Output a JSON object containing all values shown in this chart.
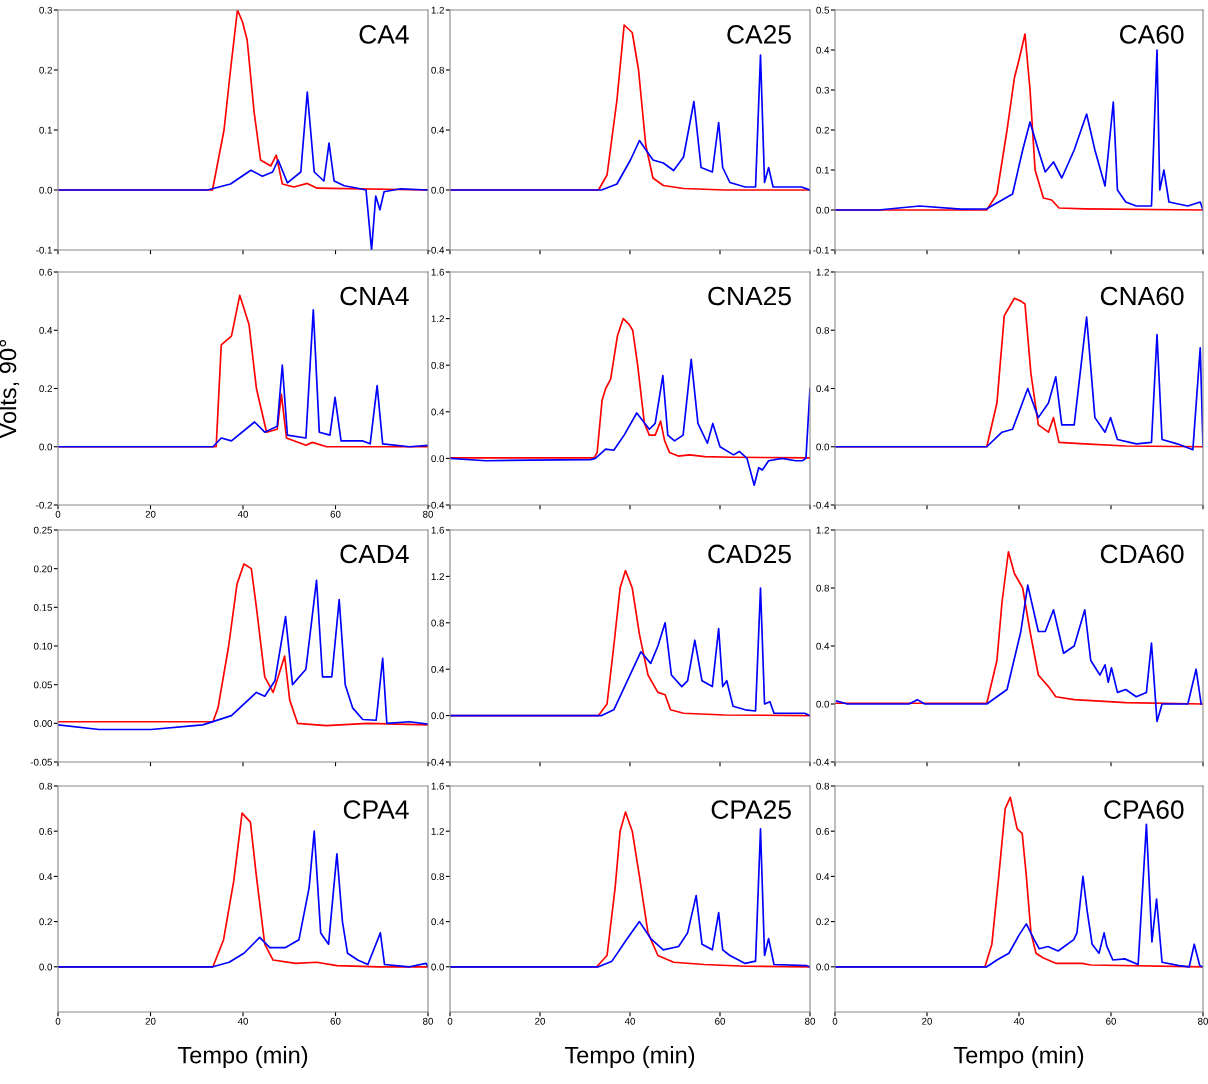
{
  "chart_data": [
    {
      "type": "line",
      "title": "CA4",
      "xlim": [
        0,
        80
      ],
      "ylim": [
        -0.1,
        0.3
      ],
      "xticks": [
        0,
        20,
        40,
        60,
        80
      ],
      "yticks": [
        {
          "value": -0.1,
          "label": "-0.1"
        },
        {
          "value": 0,
          "label": "0.0"
        },
        {
          "value": 0.1,
          "label": "0.1"
        },
        {
          "value": 0.2,
          "label": "0.2"
        },
        {
          "value": 0.3,
          "label": "0.3"
        }
      ],
      "tick_labels": "y",
      "series": [
        {
          "color": "#ff0000",
          "x": [
            0,
            33.4,
            35.9,
            37.3,
            38.8,
            39.9,
            40.9,
            42.4,
            43.8,
            46,
            47.2,
            48.5,
            51,
            53.9,
            56,
            80
          ],
          "values": [
            0,
            0,
            0.1,
            0.2,
            0.3,
            0.28,
            0.25,
            0.13,
            0.05,
            0.04,
            0.058,
            0.01,
            0.005,
            0.011,
            0.003,
            0
          ]
        },
        {
          "color": "#0000ff",
          "x": [
            0,
            32.3,
            37.3,
            41.7,
            44.2,
            46.4,
            47.6,
            49.6,
            52.5,
            53.9,
            55.4,
            57.5,
            58.6,
            59.7,
            61.9,
            64.8,
            66.6,
            67.8,
            68.7,
            69.6,
            70.5,
            74.1,
            80
          ],
          "values": [
            0,
            0,
            0.01,
            0.033,
            0.023,
            0.03,
            0.05,
            0.012,
            0.03,
            0.163,
            0.03,
            0.015,
            0.078,
            0.015,
            0.007,
            0.003,
            0,
            -0.1,
            -0.01,
            -0.033,
            -0.003,
            0.002,
            0
          ]
        }
      ]
    },
    {
      "type": "line",
      "title": "CA25",
      "xlim": [
        0,
        80
      ],
      "ylim": [
        -0.4,
        1.2
      ],
      "xticks": [
        0,
        20,
        40,
        60,
        80
      ],
      "yticks": [
        {
          "value": -0.4,
          "label": "-0.4"
        },
        {
          "value": 0,
          "label": "0.0"
        },
        {
          "value": 0.4,
          "label": "0.4"
        },
        {
          "value": 0.8,
          "label": "0.8"
        },
        {
          "value": 1.2,
          "label": "1.2"
        }
      ],
      "tick_labels": "y",
      "series": [
        {
          "color": "#ff0000",
          "x": [
            0,
            33,
            34.9,
            37.1,
            38.7,
            40.5,
            41.9,
            43.5,
            45.1,
            47.4,
            51.9,
            61,
            80
          ],
          "values": [
            0,
            0,
            0.1,
            0.6,
            1.1,
            1.05,
            0.8,
            0.3,
            0.08,
            0.03,
            0.01,
            0,
            0
          ]
        },
        {
          "color": "#0000ff",
          "x": [
            0,
            33.7,
            37.1,
            40.1,
            42.1,
            45.1,
            47.4,
            49.7,
            51.9,
            54.2,
            55.8,
            58.3,
            59.7,
            60.6,
            62.2,
            65.6,
            67.9,
            69,
            69.9,
            70.8,
            71.8,
            78.1,
            80
          ],
          "values": [
            0,
            0,
            0.04,
            0.2,
            0.33,
            0.2,
            0.18,
            0.13,
            0.22,
            0.59,
            0.15,
            0.12,
            0.45,
            0.15,
            0.05,
            0.02,
            0.02,
            0.9,
            0.05,
            0.15,
            0.02,
            0.02,
            0
          ]
        }
      ]
    },
    {
      "type": "line",
      "title": "CA60",
      "xlim": [
        0,
        80
      ],
      "ylim": [
        -0.1,
        0.5
      ],
      "xticks": [
        0,
        20,
        40,
        60,
        80
      ],
      "yticks": [
        {
          "value": -0.1,
          "label": "-0.1"
        },
        {
          "value": 0,
          "label": "0.0"
        },
        {
          "value": 0.1,
          "label": "0.1"
        },
        {
          "value": 0.2,
          "label": "0.2"
        },
        {
          "value": 0.3,
          "label": "0.3"
        },
        {
          "value": 0.4,
          "label": "0.4"
        },
        {
          "value": 0.5,
          "label": "0.5"
        }
      ],
      "tick_labels": "y",
      "series": [
        {
          "color": "#ff0000",
          "x": [
            0,
            33,
            35.2,
            37.4,
            39,
            40.1,
            41.3,
            42.4,
            43.5,
            45.3,
            47.1,
            48.7,
            54.3,
            80
          ],
          "values": [
            0,
            0,
            0.04,
            0.2,
            0.33,
            0.38,
            0.44,
            0.3,
            0.1,
            0.03,
            0.025,
            0.005,
            0.003,
            0
          ]
        },
        {
          "color": "#0000ff",
          "x": [
            0,
            9.4,
            13.9,
            18.4,
            27.4,
            33,
            38.6,
            40.8,
            42.4,
            44.2,
            45.7,
            47.5,
            49.3,
            52,
            54.7,
            56.5,
            58.7,
            60.5,
            61.4,
            63.2,
            65.5,
            68.8,
            70,
            70.6,
            71.5,
            72.6,
            76.7,
            79.4,
            80
          ],
          "values": [
            0,
            0,
            0.005,
            0.01,
            0.002,
            0.003,
            0.04,
            0.15,
            0.22,
            0.15,
            0.095,
            0.12,
            0.08,
            0.15,
            0.24,
            0.15,
            0.06,
            0.27,
            0.05,
            0.02,
            0.01,
            0.01,
            0.4,
            0.05,
            0.1,
            0.02,
            0.01,
            0.02,
            0
          ]
        }
      ]
    },
    {
      "type": "line",
      "title": "CNA4",
      "ylabel": "Volts, 90°",
      "xlim": [
        0,
        80
      ],
      "ylim": [
        -0.2,
        0.6
      ],
      "xticks": [
        0,
        20,
        40,
        60,
        80
      ],
      "yticks": [
        {
          "value": -0.2,
          "label": "-0.2"
        },
        {
          "value": 0,
          "label": "0.0"
        },
        {
          "value": 0.2,
          "label": "0.2"
        },
        {
          "value": 0.4,
          "label": "0.4"
        },
        {
          "value": 0.6,
          "label": "0.6"
        }
      ],
      "series": [
        {
          "color": "#ff0000",
          "x": [
            0,
            34.2,
            35.3,
            37.5,
            39.3,
            41.3,
            42.9,
            45.1,
            47.4,
            48.3,
            49.4,
            53.6,
            55,
            58.1,
            80
          ],
          "values": [
            0,
            0,
            0.35,
            0.38,
            0.52,
            0.42,
            0.2,
            0.05,
            0.06,
            0.18,
            0.03,
            0.005,
            0.015,
            0,
            0
          ]
        },
        {
          "color": "#0000ff",
          "x": [
            0,
            33.5,
            35.3,
            37.5,
            42.5,
            44.7,
            47.4,
            48.5,
            49.6,
            53.6,
            55.2,
            56.5,
            58.8,
            59.9,
            61.2,
            65.9,
            67.5,
            69,
            70.2,
            76,
            80
          ],
          "values": [
            0,
            0,
            0.03,
            0.02,
            0.085,
            0.05,
            0.07,
            0.28,
            0.04,
            0.03,
            0.47,
            0.05,
            0.04,
            0.17,
            0.02,
            0.02,
            0.01,
            0.21,
            0.01,
            0,
            0.005
          ]
        }
      ]
    },
    {
      "type": "line",
      "title": "CNA25",
      "xlim": [
        0,
        80
      ],
      "ylim": [
        -0.4,
        1.6
      ],
      "xticks": [
        0,
        20,
        40,
        60,
        80
      ],
      "yticks": [
        {
          "value": -0.4,
          "label": "-0.4"
        },
        {
          "value": 0,
          "label": "0.0"
        },
        {
          "value": 0.4,
          "label": "0.4"
        },
        {
          "value": 0.8,
          "label": "0.8"
        },
        {
          "value": 1.2,
          "label": "1.2"
        },
        {
          "value": 1.6,
          "label": "1.6"
        }
      ],
      "tick_labels": "y",
      "series": [
        {
          "color": "#ff0000",
          "x": [
            0,
            32,
            32.7,
            33.8,
            34.6,
            35.7,
            37.2,
            38.5,
            39.8,
            40.6,
            41.7,
            43.2,
            44.3,
            45.6,
            46.8,
            47.7,
            48.8,
            50.7,
            53.3,
            56.6,
            62.6,
            80
          ],
          "values": [
            0.005,
            0.005,
            0.05,
            0.5,
            0.6,
            0.68,
            1.05,
            1.2,
            1.15,
            1.1,
            0.8,
            0.3,
            0.2,
            0.2,
            0.32,
            0.15,
            0.05,
            0.02,
            0.03,
            0.015,
            0.01,
            0.005
          ]
        },
        {
          "color": "#0000ff",
          "x": [
            0,
            8,
            17.8,
            31.2,
            32.3,
            34.6,
            36.4,
            38.7,
            41.5,
            44.3,
            45.6,
            47.3,
            48.4,
            49.9,
            51.8,
            53.6,
            55.1,
            57.2,
            58.4,
            60,
            63,
            64.3,
            66,
            67.6,
            68.6,
            69.4,
            70.8,
            73.8,
            76.8,
            78.3,
            79.1,
            80
          ],
          "values": [
            0,
            -0.02,
            -0.015,
            -0.01,
            0,
            0.08,
            0.07,
            0.2,
            0.39,
            0.25,
            0.3,
            0.71,
            0.2,
            0.15,
            0.2,
            0.85,
            0.3,
            0.13,
            0.3,
            0.1,
            0.03,
            0.06,
            0,
            -0.23,
            -0.08,
            -0.1,
            -0.02,
            0,
            -0.02,
            -0.02,
            0,
            0.6
          ]
        }
      ]
    },
    {
      "type": "line",
      "title": "CNA60",
      "xlim": [
        0,
        80
      ],
      "ylim": [
        -0.4,
        1.2
      ],
      "xticks": [
        0,
        20,
        40,
        60,
        80
      ],
      "yticks": [
        {
          "value": -0.4,
          "label": "-0.4"
        },
        {
          "value": 0,
          "label": "0.0"
        },
        {
          "value": 0.4,
          "label": "0.4"
        },
        {
          "value": 0.8,
          "label": "0.8"
        },
        {
          "value": 1.2,
          "label": "1.2"
        }
      ],
      "tick_labels": "y",
      "series": [
        {
          "color": "#ff0000",
          "x": [
            0,
            33,
            35.2,
            36.8,
            39,
            40.4,
            41.3,
            42.6,
            44.2,
            46.4,
            47.5,
            48.7,
            54.3,
            63.2,
            80
          ],
          "values": [
            0,
            0,
            0.3,
            0.9,
            1.02,
            1.0,
            0.98,
            0.5,
            0.15,
            0.1,
            0.2,
            0.03,
            0.02,
            0.005,
            0
          ]
        },
        {
          "color": "#0000ff",
          "x": [
            0,
            33,
            36.3,
            38.6,
            41.9,
            44.2,
            46.4,
            48,
            49.3,
            52,
            54.7,
            56.5,
            58.7,
            59.9,
            61.4,
            65.5,
            68.8,
            70,
            71.1,
            74.4,
            77.8,
            79.4,
            80
          ],
          "values": [
            0,
            0,
            0.1,
            0.12,
            0.4,
            0.2,
            0.3,
            0.48,
            0.15,
            0.15,
            0.89,
            0.2,
            0.1,
            0.2,
            0.05,
            0.02,
            0.03,
            0.77,
            0.05,
            0.02,
            -0.02,
            0.68,
            0
          ]
        }
      ]
    },
    {
      "type": "line",
      "title": "CAD4",
      "xlim": [
        0,
        80
      ],
      "ylim": [
        -0.05,
        0.25
      ],
      "xticks": [
        0,
        20,
        40,
        60,
        80
      ],
      "yticks": [
        {
          "value": -0.05,
          "label": "-0.05"
        },
        {
          "value": 0,
          "label": "0.00"
        },
        {
          "value": 0.05,
          "label": "0.05"
        },
        {
          "value": 0.1,
          "label": "0.10"
        },
        {
          "value": 0.15,
          "label": "0.15"
        },
        {
          "value": 0.2,
          "label": "0.20"
        },
        {
          "value": 0.25,
          "label": "0.25"
        }
      ],
      "tick_labels": "y",
      "series": [
        {
          "color": "#ff0000",
          "x": [
            0,
            33.5,
            34.6,
            36.9,
            38.7,
            40.2,
            41.8,
            42.9,
            44.7,
            46.5,
            47.6,
            49,
            50.1,
            51.8,
            58,
            67,
            80
          ],
          "values": [
            0.002,
            0.002,
            0.02,
            0.1,
            0.18,
            0.206,
            0.2,
            0.15,
            0.06,
            0.04,
            0.06,
            0.087,
            0.03,
            0,
            -0.003,
            0,
            -0.002
          ]
        },
        {
          "color": "#0000ff",
          "x": [
            0,
            8.9,
            20.1,
            31.3,
            37.5,
            42.9,
            44.7,
            46.9,
            49.2,
            50.7,
            53.6,
            55.9,
            57.2,
            59.2,
            60.8,
            62.1,
            63.7,
            65.9,
            68.8,
            70.2,
            71.1,
            76,
            80
          ],
          "values": [
            -0.002,
            -0.008,
            -0.008,
            -0.002,
            0.01,
            0.04,
            0.035,
            0.055,
            0.138,
            0.05,
            0.07,
            0.185,
            0.06,
            0.06,
            0.16,
            0.05,
            0.02,
            0.005,
            0.004,
            0.084,
            0,
            0.002,
            -0.001
          ]
        }
      ]
    },
    {
      "type": "line",
      "title": "CAD25",
      "xlim": [
        0,
        80
      ],
      "ylim": [
        -0.4,
        1.6
      ],
      "xticks": [
        0,
        20,
        40,
        60,
        80
      ],
      "yticks": [
        {
          "value": -0.4,
          "label": "-0.4"
        },
        {
          "value": 0,
          "label": "0.0"
        },
        {
          "value": 0.4,
          "label": "0.4"
        },
        {
          "value": 0.8,
          "label": "0.8"
        },
        {
          "value": 1.2,
          "label": "1.2"
        },
        {
          "value": 1.6,
          "label": "1.6"
        }
      ],
      "tick_labels": "y",
      "series": [
        {
          "color": "#ff0000",
          "x": [
            0,
            33,
            34.9,
            36.4,
            37.8,
            39,
            40.5,
            42.1,
            44,
            46.2,
            47.8,
            49,
            51.9,
            61,
            80
          ],
          "values": [
            0,
            0,
            0.1,
            0.6,
            1.1,
            1.25,
            1.1,
            0.7,
            0.35,
            0.2,
            0.18,
            0.05,
            0.02,
            0.005,
            0
          ]
        },
        {
          "color": "#0000ff",
          "x": [
            0,
            33.7,
            36.4,
            39.4,
            42.4,
            44.6,
            46.2,
            47.8,
            49.2,
            51.5,
            52.8,
            54.4,
            56,
            58.3,
            59.7,
            60.6,
            61.5,
            62.9,
            65.6,
            67.9,
            69,
            69.9,
            71.1,
            72,
            78.8,
            80
          ],
          "values": [
            0,
            0,
            0.05,
            0.3,
            0.55,
            0.45,
            0.6,
            0.8,
            0.35,
            0.25,
            0.3,
            0.65,
            0.3,
            0.25,
            0.75,
            0.25,
            0.3,
            0.08,
            0.05,
            0.04,
            1.1,
            0.1,
            0.12,
            0.02,
            0.02,
            0
          ]
        }
      ]
    },
    {
      "type": "line",
      "title": "CDA60",
      "xlim": [
        0,
        80
      ],
      "ylim": [
        -0.4,
        1.2
      ],
      "xticks": [
        0,
        20,
        40,
        60,
        80
      ],
      "yticks": [
        {
          "value": -0.4,
          "label": "-0.4"
        },
        {
          "value": 0,
          "label": "0.0"
        },
        {
          "value": 0.4,
          "label": "0.4"
        },
        {
          "value": 0.8,
          "label": "0.8"
        },
        {
          "value": 1.2,
          "label": "1.2"
        }
      ],
      "tick_labels": "y",
      "series": [
        {
          "color": "#ff0000",
          "x": [
            0,
            33,
            35.2,
            36.3,
            37.7,
            39,
            40.8,
            42.4,
            44.2,
            46.4,
            48,
            52,
            63.2,
            80
          ],
          "values": [
            0.005,
            0.005,
            0.3,
            0.7,
            1.05,
            0.9,
            0.8,
            0.5,
            0.2,
            0.12,
            0.05,
            0.03,
            0.01,
            0
          ]
        },
        {
          "color": "#0000ff",
          "x": [
            0.4,
            2.7,
            16.1,
            17.9,
            19.5,
            33,
            37.4,
            40.4,
            41.9,
            44.2,
            45.7,
            47.5,
            49.7,
            52,
            54.3,
            55.6,
            57.6,
            58.7,
            59.4,
            60.1,
            61.4,
            63.2,
            65.5,
            67.7,
            68.8,
            70,
            71.1,
            76.7,
            78.5,
            79.6
          ],
          "values": [
            0.02,
            0,
            0,
            0.03,
            0,
            0,
            0.1,
            0.5,
            0.82,
            0.5,
            0.5,
            0.65,
            0.35,
            0.4,
            0.65,
            0.3,
            0.2,
            0.27,
            0.15,
            0.25,
            0.08,
            0.1,
            0.05,
            0.08,
            0.42,
            -0.12,
            0,
            0,
            0.24,
            0
          ]
        }
      ]
    },
    {
      "type": "line",
      "title": "CPA4",
      "xlabel": "Tempo (min)",
      "xlim": [
        0,
        80
      ],
      "ylim": [
        -0.2,
        0.8
      ],
      "xticks": [
        0,
        20,
        40,
        60,
        80
      ],
      "yticks": [
        {
          "value": 0,
          "label": "0.0"
        },
        {
          "value": 0.2,
          "label": "0.2"
        },
        {
          "value": 0.4,
          "label": "0.4"
        },
        {
          "value": 0.6,
          "label": "0.6"
        },
        {
          "value": 0.8,
          "label": "0.8"
        }
      ],
      "series": [
        {
          "color": "#ff0000",
          "x": [
            0,
            33.5,
            35.8,
            38,
            39.8,
            41.6,
            42.9,
            44.7,
            46.5,
            51.4,
            55.9,
            60.3,
            69.3,
            80
          ],
          "values": [
            0,
            0,
            0.12,
            0.38,
            0.68,
            0.64,
            0.4,
            0.1,
            0.03,
            0.015,
            0.02,
            0.005,
            0,
            0
          ]
        },
        {
          "color": "#0000ff",
          "x": [
            0,
            33.5,
            37,
            40.2,
            43.6,
            45.8,
            49.2,
            52.1,
            54.3,
            55.4,
            56.8,
            58.5,
            60.3,
            61.5,
            62.6,
            64.8,
            67,
            69.7,
            70.6,
            76,
            79.6,
            80
          ],
          "values": [
            0,
            0,
            0.02,
            0.06,
            0.13,
            0.085,
            0.085,
            0.12,
            0.35,
            0.6,
            0.15,
            0.1,
            0.5,
            0.2,
            0.06,
            0.03,
            0.01,
            0.15,
            0.01,
            0,
            0.015,
            0
          ]
        }
      ]
    },
    {
      "type": "line",
      "title": "CPA25",
      "xlabel": "Tempo (min)",
      "xlim": [
        0,
        80
      ],
      "ylim": [
        -0.4,
        1.6
      ],
      "xticks": [
        0,
        20,
        40,
        60,
        80
      ],
      "yticks": [
        {
          "value": 0,
          "label": "0.0"
        },
        {
          "value": 0.4,
          "label": "0.4"
        },
        {
          "value": 0.8,
          "label": "0.8"
        },
        {
          "value": 1.2,
          "label": "1.2"
        },
        {
          "value": 1.6,
          "label": "1.6"
        }
      ],
      "series": [
        {
          "color": "#ff0000",
          "x": [
            0,
            32.6,
            34.9,
            36.7,
            37.8,
            39,
            40.5,
            42.1,
            44,
            46.2,
            49.7,
            56.5,
            65.6,
            80
          ],
          "values": [
            0,
            0,
            0.1,
            0.7,
            1.2,
            1.37,
            1.2,
            0.8,
            0.3,
            0.1,
            0.04,
            0.02,
            0.005,
            0
          ]
        },
        {
          "color": "#0000ff",
          "x": [
            0,
            33,
            36,
            39.4,
            42.1,
            44.6,
            47.4,
            50.8,
            52.8,
            54.7,
            56,
            58.3,
            59.7,
            60.6,
            62.2,
            65.6,
            67.9,
            69,
            69.9,
            70.8,
            72,
            79.3,
            80
          ],
          "values": [
            0,
            0,
            0.05,
            0.25,
            0.4,
            0.25,
            0.15,
            0.18,
            0.3,
            0.63,
            0.2,
            0.15,
            0.48,
            0.15,
            0.1,
            0.03,
            0.05,
            1.22,
            0.1,
            0.25,
            0.02,
            0.01,
            0
          ]
        }
      ]
    },
    {
      "type": "line",
      "title": "CPA60",
      "xlabel": "Tempo (min)",
      "xlim": [
        0,
        80
      ],
      "ylim": [
        -0.2,
        0.8
      ],
      "xticks": [
        0,
        20,
        40,
        60,
        80
      ],
      "yticks": [
        {
          "value": 0,
          "label": "0.0"
        },
        {
          "value": 0.2,
          "label": "0.2"
        },
        {
          "value": 0.4,
          "label": "0.4"
        },
        {
          "value": 0.6,
          "label": "0.6"
        },
        {
          "value": 0.8,
          "label": "0.8"
        }
      ],
      "series": [
        {
          "color": "#ff0000",
          "x": [
            0,
            32.6,
            34.1,
            35.6,
            37,
            38.1,
            39.6,
            40.7,
            41.6,
            42.6,
            43.7,
            45.2,
            48.1,
            53.7,
            55.6,
            80
          ],
          "values": [
            0,
            0,
            0.1,
            0.4,
            0.7,
            0.75,
            0.61,
            0.59,
            0.4,
            0.15,
            0.06,
            0.04,
            0.015,
            0.015,
            0.008,
            0
          ]
        },
        {
          "color": "#0000ff",
          "x": [
            0,
            33,
            35.2,
            37.8,
            40,
            41.6,
            43.3,
            44.4,
            46.3,
            48.5,
            51.9,
            52.6,
            53.9,
            54.8,
            55.9,
            57.4,
            58.5,
            59.1,
            60.4,
            63,
            65.9,
            67.7,
            68.9,
            69.9,
            71.1,
            74.8,
            77,
            78.1,
            79.3,
            80
          ],
          "values": [
            0,
            0,
            0.03,
            0.06,
            0.14,
            0.19,
            0.12,
            0.08,
            0.09,
            0.07,
            0.12,
            0.15,
            0.4,
            0.25,
            0.1,
            0.06,
            0.15,
            0.09,
            0.03,
            0.035,
            0.01,
            0.63,
            0.11,
            0.3,
            0.02,
            0.005,
            0,
            0.1,
            0.005,
            0
          ]
        }
      ]
    }
  ]
}
